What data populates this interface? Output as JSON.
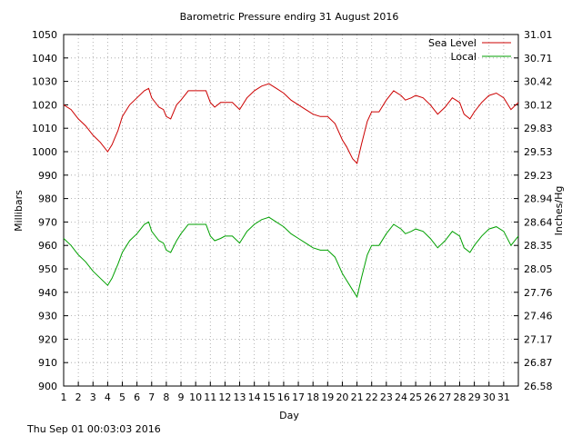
{
  "chart_data": {
    "type": "line",
    "title": "Barometric Pressure endirg 31 August 2016",
    "xlabel": "Day",
    "ylabel": "Millibars",
    "y2label": "Inches/Hg",
    "footer": "Thu Sep 01 00:03:03 2016",
    "xlim": [
      1,
      32
    ],
    "ylim": [
      900,
      1050
    ],
    "x_ticks": [
      "1",
      "2",
      "3",
      "4",
      "5",
      "6",
      "7",
      "8",
      "9",
      "10",
      "11",
      "12",
      "13",
      "14",
      "15",
      "16",
      "17",
      "18",
      "19",
      "20",
      "21",
      "22",
      "23",
      "24",
      "25",
      "26",
      "27",
      "28",
      "29",
      "30",
      "31"
    ],
    "y_ticks": [
      "900",
      "910",
      "920",
      "930",
      "940",
      "950",
      "960",
      "970",
      "980",
      "990",
      "1000",
      "1010",
      "1020",
      "1030",
      "1040",
      "1050"
    ],
    "y2_ticks": [
      "26.58",
      "26.87",
      "27.17",
      "27.46",
      "27.76",
      "28.05",
      "28.35",
      "28.64",
      "28.94",
      "29.23",
      "29.53",
      "29.83",
      "30.12",
      "30.42",
      "30.71",
      "31.01"
    ],
    "grid": true,
    "legend_position": "top-right",
    "colors": {
      "sea_level": "#cc0000",
      "local": "#00a000"
    },
    "series": [
      {
        "name": "Sea Level",
        "x": [
          1,
          1.5,
          2,
          2.5,
          3,
          3.5,
          4,
          4.3,
          4.7,
          5,
          5.5,
          6,
          6.5,
          6.8,
          7,
          7.5,
          7.8,
          8,
          8.3,
          8.7,
          9,
          9.5,
          10,
          10.3,
          10.7,
          11,
          11.3,
          11.7,
          12,
          12.5,
          13,
          13.5,
          14,
          14.5,
          15,
          15.5,
          16,
          16.5,
          17,
          17.5,
          18,
          18.5,
          19,
          19.5,
          20,
          20.3,
          20.7,
          21,
          21.3,
          21.7,
          22,
          22.5,
          23,
          23.5,
          24,
          24.3,
          24.7,
          25,
          25.5,
          26,
          26.5,
          27,
          27.5,
          28,
          28.3,
          28.7,
          29,
          29.5,
          30,
          30.5,
          31,
          31.5,
          32
        ],
        "y": [
          1020,
          1018,
          1014,
          1011,
          1007,
          1004,
          1000,
          1003,
          1009,
          1015,
          1020,
          1023,
          1026,
          1027,
          1023,
          1019,
          1018,
          1015,
          1014,
          1020,
          1022,
          1026,
          1026,
          1026,
          1026,
          1021,
          1019,
          1021,
          1021,
          1021,
          1018,
          1023,
          1026,
          1028,
          1029,
          1027,
          1025,
          1022,
          1020,
          1018,
          1016,
          1015,
          1015,
          1012,
          1005,
          1002,
          997,
          995,
          1003,
          1013,
          1017,
          1017,
          1022,
          1026,
          1024,
          1022,
          1023,
          1024,
          1023,
          1020,
          1016,
          1019,
          1023,
          1021,
          1016,
          1014,
          1017,
          1021,
          1024,
          1025,
          1023,
          1018,
          1021
        ]
      },
      {
        "name": "Local",
        "x": [
          1,
          1.5,
          2,
          2.5,
          3,
          3.5,
          4,
          4.3,
          4.7,
          5,
          5.5,
          6,
          6.5,
          6.8,
          7,
          7.5,
          7.8,
          8,
          8.3,
          8.7,
          9,
          9.5,
          10,
          10.3,
          10.7,
          11,
          11.3,
          11.7,
          12,
          12.5,
          13,
          13.5,
          14,
          14.5,
          15,
          15.5,
          16,
          16.5,
          17,
          17.5,
          18,
          18.5,
          19,
          19.5,
          20,
          20.3,
          20.7,
          21,
          21.3,
          21.7,
          22,
          22.5,
          23,
          23.5,
          24,
          24.3,
          24.7,
          25,
          25.5,
          26,
          26.5,
          27,
          27.5,
          28,
          28.3,
          28.7,
          29,
          29.5,
          30,
          30.5,
          31,
          31.5,
          32
        ],
        "y": [
          963,
          960,
          956,
          953,
          949,
          946,
          943,
          946,
          952,
          957,
          962,
          965,
          969,
          970,
          966,
          962,
          961,
          958,
          957,
          962,
          965,
          969,
          969,
          969,
          969,
          964,
          962,
          963,
          964,
          964,
          961,
          966,
          969,
          971,
          972,
          970,
          968,
          965,
          963,
          961,
          959,
          958,
          958,
          955,
          948,
          945,
          941,
          938,
          946,
          956,
          960,
          960,
          965,
          969,
          967,
          965,
          966,
          967,
          966,
          963,
          959,
          962,
          966,
          964,
          959,
          957,
          960,
          964,
          967,
          968,
          966,
          960,
          964
        ]
      }
    ]
  }
}
